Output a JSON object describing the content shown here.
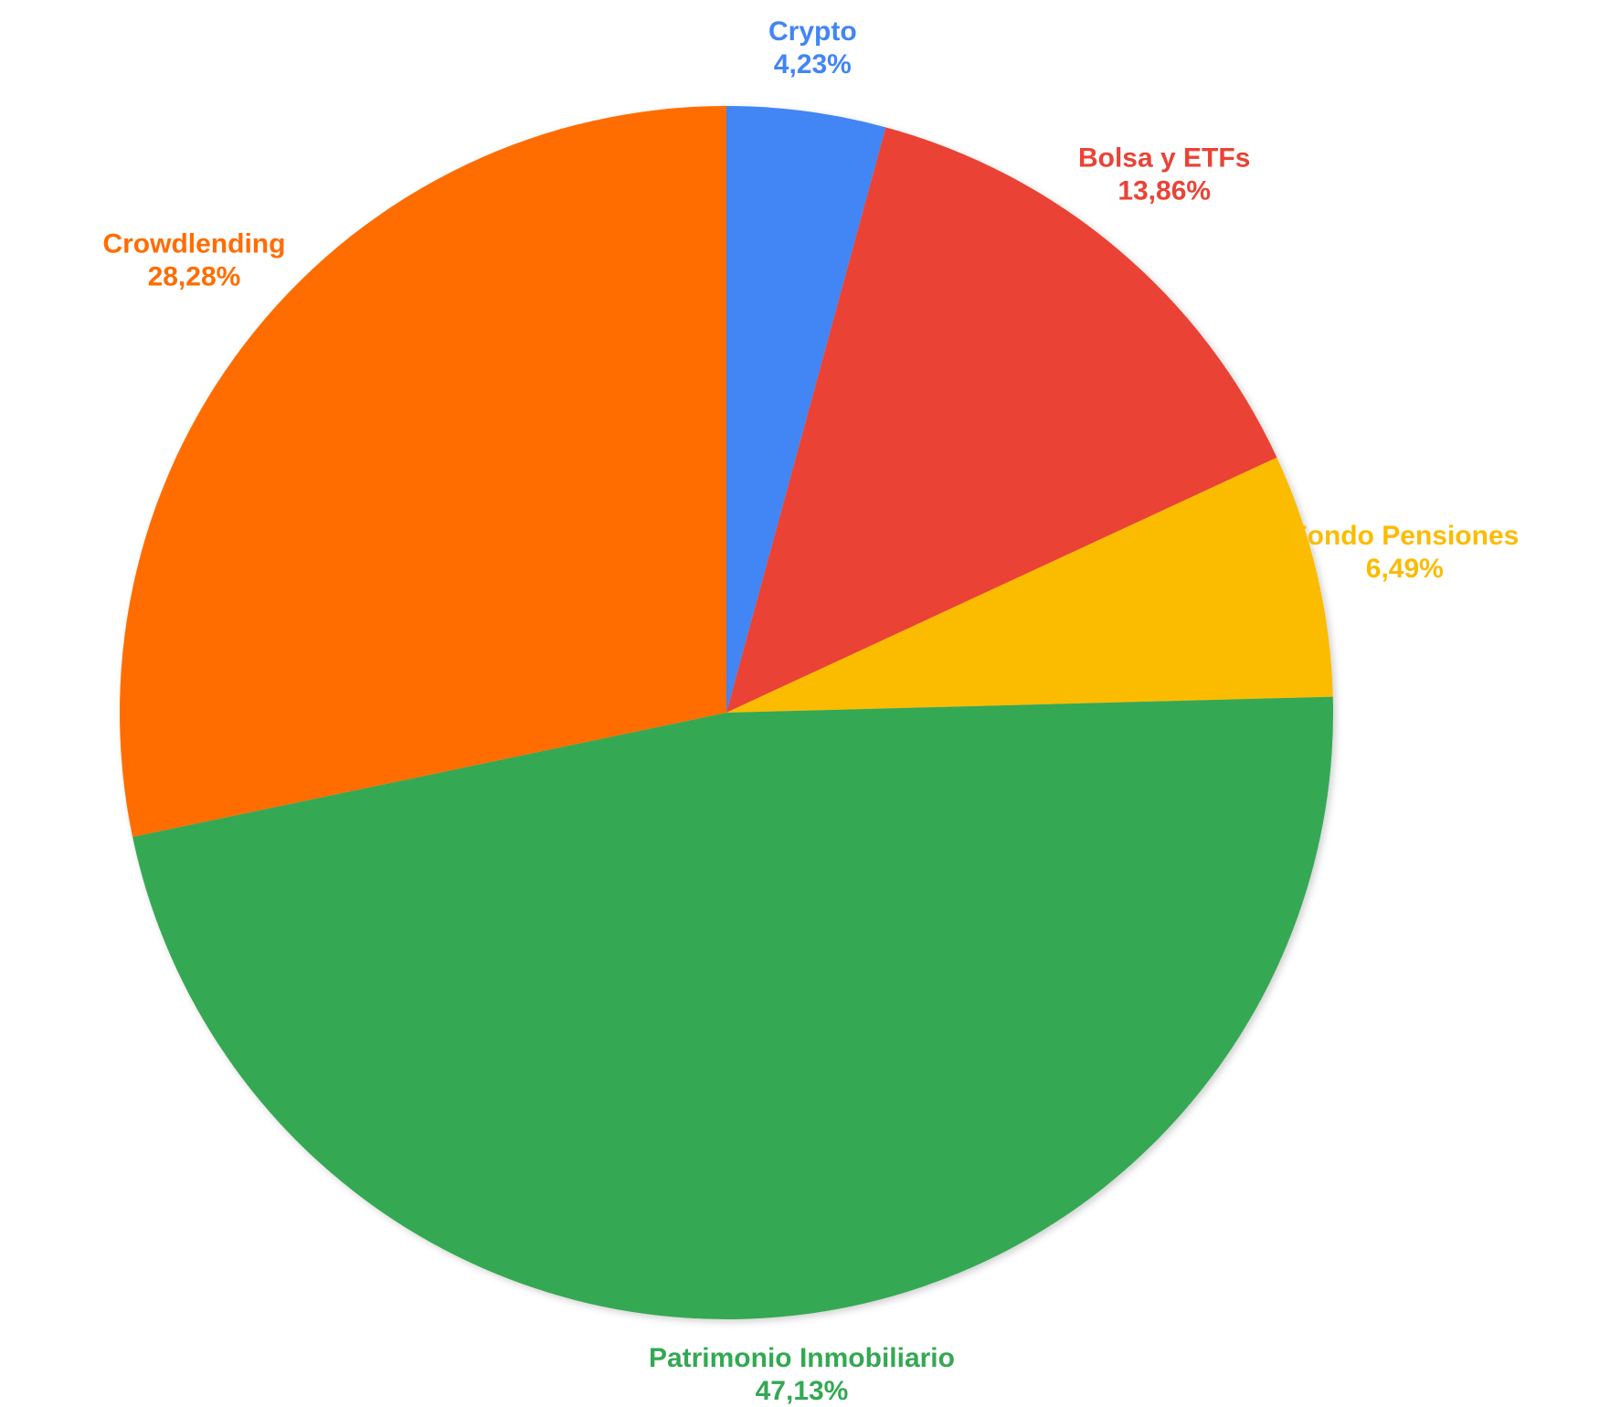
{
  "chart_data": {
    "type": "pie",
    "categories": [
      "Crypto",
      "Bolsa y ETFs",
      "Fondo Pensiones",
      "Patrimonio Inmobiliario",
      "Crowdlending"
    ],
    "values": [
      4.23,
      13.86,
      6.49,
      47.13,
      28.28
    ],
    "value_labels": [
      "4,23%",
      "13,86%",
      "6,49%",
      "47,13%",
      "28,28%"
    ],
    "colors": [
      "#4285f4",
      "#ea4335",
      "#fbbc04",
      "#34a853",
      "#ff6d01"
    ]
  }
}
